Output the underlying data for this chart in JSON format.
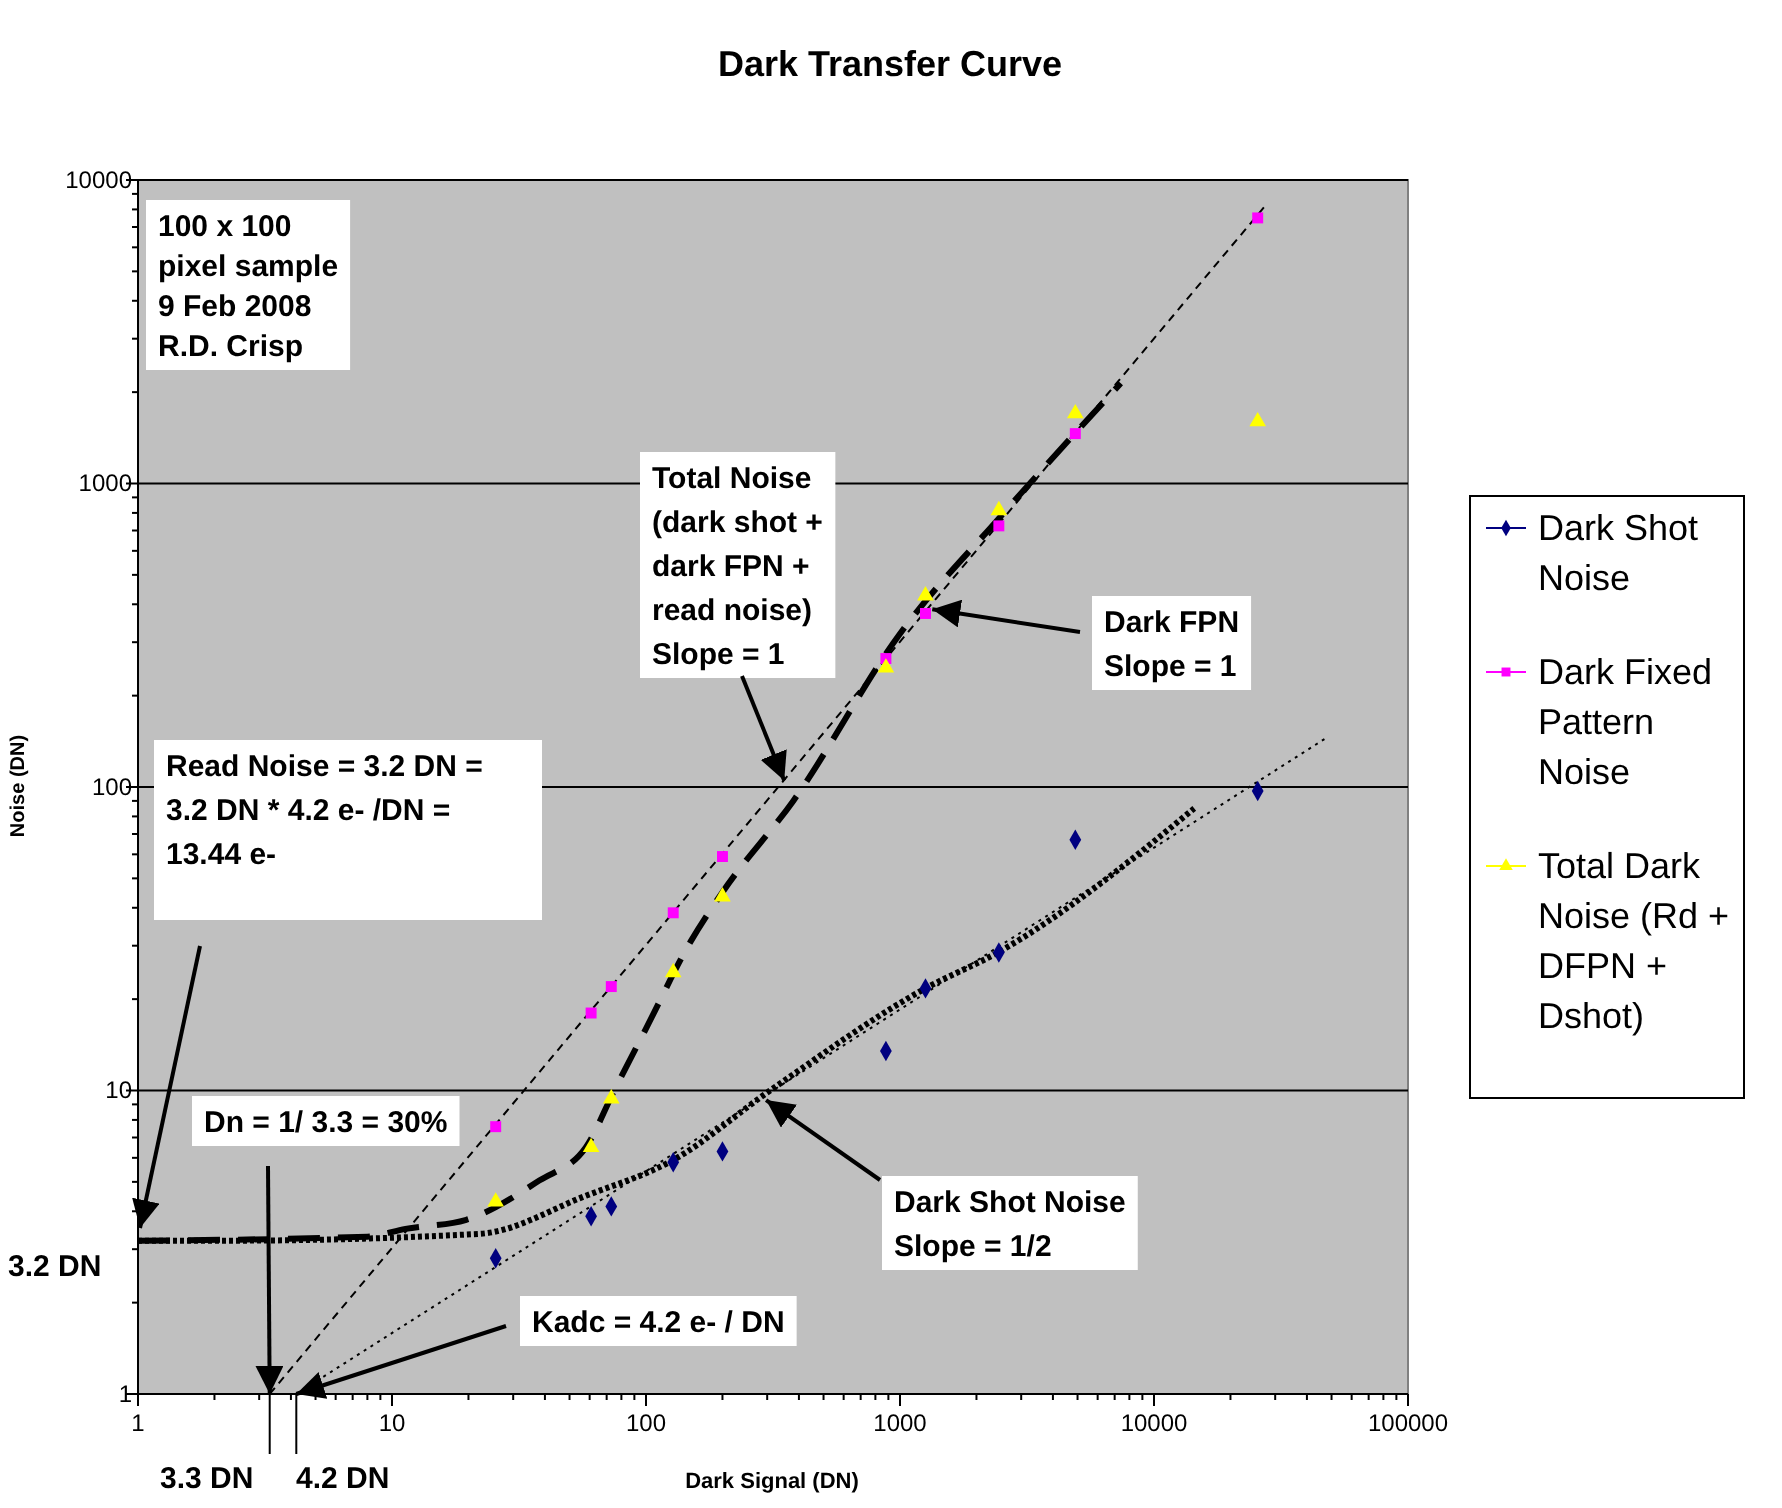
{
  "chart_data": {
    "type": "scatter",
    "title": "Dark Transfer Curve",
    "xlabel": "Dark Signal (DN)",
    "ylabel": "Noise (DN)",
    "log": "xy",
    "grid": "y",
    "legend": "right",
    "xlim": [
      1,
      100000
    ],
    "ylim": [
      1,
      10000
    ],
    "xticks": [
      1,
      {
        "value": 2,
        "label": null
      },
      {
        "value": 3,
        "label": null
      },
      {
        "value": 4,
        "label": null
      },
      {
        "value": 5,
        "label": null
      },
      {
        "value": 6,
        "label": null
      },
      {
        "value": 7,
        "label": null
      },
      {
        "value": 8,
        "label": null
      },
      {
        "value": 9,
        "label": null
      },
      10,
      {
        "value": 20,
        "label": null
      },
      {
        "value": 30,
        "label": null
      },
      {
        "value": 40,
        "label": null
      },
      {
        "value": 50,
        "label": null
      },
      {
        "value": 60,
        "label": null
      },
      {
        "value": 70,
        "label": null
      },
      {
        "value": 80,
        "label": null
      },
      {
        "value": 90,
        "label": null
      },
      100,
      {
        "value": 200,
        "label": null
      },
      {
        "value": 300,
        "label": null
      },
      {
        "value": 400,
        "label": null
      },
      {
        "value": 500,
        "label": null
      },
      {
        "value": 600,
        "label": null
      },
      {
        "value": 700,
        "label": null
      },
      {
        "value": 800,
        "label": null
      },
      {
        "value": 900,
        "label": null
      },
      1000,
      {
        "value": 2000,
        "label": null
      },
      {
        "value": 3000,
        "label": null
      },
      {
        "value": 4000,
        "label": null
      },
      {
        "value": 5000,
        "label": null
      },
      {
        "value": 6000,
        "label": null
      },
      {
        "value": 7000,
        "label": null
      },
      {
        "value": 8000,
        "label": null
      },
      {
        "value": 9000,
        "label": null
      },
      10000,
      {
        "value": 20000,
        "label": null
      },
      {
        "value": 30000,
        "label": null
      },
      {
        "value": 40000,
        "label": null
      },
      {
        "value": 50000,
        "label": null
      },
      {
        "value": 60000,
        "label": null
      },
      {
        "value": 70000,
        "label": null
      },
      {
        "value": 80000,
        "label": null
      },
      {
        "value": 90000,
        "label": null
      },
      100000
    ],
    "yticks": [
      1,
      {
        "value": 2,
        "label": null
      },
      {
        "value": 3,
        "label": null
      },
      {
        "value": 4,
        "label": null
      },
      {
        "value": 5,
        "label": null
      },
      {
        "value": 6,
        "label": null
      },
      {
        "value": 7,
        "label": null
      },
      {
        "value": 8,
        "label": null
      },
      {
        "value": 9,
        "label": null
      },
      10,
      {
        "value": 20,
        "label": null
      },
      {
        "value": 30,
        "label": null
      },
      {
        "value": 40,
        "label": null
      },
      {
        "value": 50,
        "label": null
      },
      {
        "value": 60,
        "label": null
      },
      {
        "value": 70,
        "label": null
      },
      {
        "value": 80,
        "label": null
      },
      {
        "value": 90,
        "label": null
      },
      100,
      {
        "value": 200,
        "label": null
      },
      {
        "value": 300,
        "label": null
      },
      {
        "value": 400,
        "label": null
      },
      {
        "value": 500,
        "label": null
      },
      {
        "value": 600,
        "label": null
      },
      {
        "value": 700,
        "label": null
      },
      {
        "value": 800,
        "label": null
      },
      {
        "value": 900,
        "label": null
      },
      1000,
      {
        "value": 2000,
        "label": null
      },
      {
        "value": 3000,
        "label": null
      },
      {
        "value": 4000,
        "label": null
      },
      {
        "value": 5000,
        "label": null
      },
      {
        "value": 6000,
        "label": null
      },
      {
        "value": 7000,
        "label": null
      },
      {
        "value": 8000,
        "label": null
      },
      {
        "value": 9000,
        "label": null
      },
      10000
    ],
    "series": [
      {
        "name": "Dark Shot Noise",
        "color": "#000080",
        "marker": "diamond",
        "x": [
          25.6,
          60.8,
          73,
          128,
          200,
          880,
          1260,
          2450,
          4900,
          25600
        ],
        "values": [
          2.8,
          3.85,
          4.15,
          5.8,
          6.3,
          13.5,
          21.7,
          28.5,
          67,
          97
        ]
      },
      {
        "name": "Dark Fixed Pattern Noise",
        "color": "#ff00ff",
        "marker": "square",
        "x": [
          25.6,
          60.8,
          73,
          128,
          200,
          880,
          1260,
          2450,
          4900,
          25600
        ],
        "values": [
          7.6,
          18,
          22,
          38.5,
          59,
          265,
          373,
          725,
          1460,
          7500
        ]
      },
      {
        "name": "Total Dark Noise (Rd + DFPN + Dshot)",
        "color": "#ffff00",
        "marker": "triangle",
        "x": [
          25.6,
          60.8,
          73,
          128,
          200,
          880,
          1260,
          2450,
          4900,
          25600
        ],
        "values": [
          4.3,
          6.5,
          9.4,
          24.5,
          43.5,
          247,
          427,
          815,
          1700,
          1600
        ]
      },
      {
        "type": "line",
        "color": "#000000",
        "marker": "none",
        "line_style": "dashed",
        "x": [
          3.3,
          28000
        ],
        "values": [
          1,
          8400
        ]
      },
      {
        "type": "line",
        "color": "#000000",
        "marker": "none",
        "line_style": "dotted",
        "x": [
          4.2,
          47600
        ],
        "values": [
          1,
          145
        ]
      },
      {
        "type": "line",
        "color": "#000000",
        "marker": "none",
        "line_style": "dashed",
        "x": [
          1,
          8,
          11.3,
          19.6,
          38,
          58,
          75,
          100,
          150,
          200,
          380,
          1000,
          2480,
          7400
        ],
        "values": [
          3.2,
          3.3,
          3.5,
          3.75,
          5.05,
          6.5,
          10,
          16,
          31,
          45,
          90,
          320,
          776,
          2140
        ]
      },
      {
        "type": "line",
        "color": "#000000",
        "marker": "none",
        "line_style": "dotted",
        "x": [
          1,
          2.2,
          22,
          58,
          128,
          308,
          1260,
          2430,
          14400
        ],
        "values": [
          3.2,
          3.2,
          3.37,
          4.5,
          5.9,
          10,
          21.7,
          28.5,
          85
        ]
      }
    ],
    "annotations": [
      "100 x 100\npixel sample\n9 Feb 2008\nR.D. Crisp",
      {
        "text": "Total Noise\n(dark shot +\ndark FPN +\nread noise)\nSlope = 1",
        "x": 350,
        "y": 105
      },
      {
        "text": "Dark FPN\nSlope = 1",
        "x": 1340,
        "y": 385
      },
      "Read Noise = 3.2 DN =\n3.2 DN * 4.2 e- /DN =\n13.44 e-",
      {
        "text": "Dn = 1/ 3.3 = 30%",
        "x": 3.3,
        "y": 1
      },
      {
        "text": "Kadc = 4.2 e- / DN",
        "x": 4.2,
        "y": 1
      },
      {
        "text": "Dark Shot Noise\nSlope = 1/2",
        "x": 297,
        "y": 9.3
      },
      "3.2 DN",
      {
        "text": "3.3 DN",
        "x": 3.3,
        "y": 1
      },
      {
        "text": "4.2 DN",
        "x": 4.2,
        "y": 1
      }
    ]
  }
}
